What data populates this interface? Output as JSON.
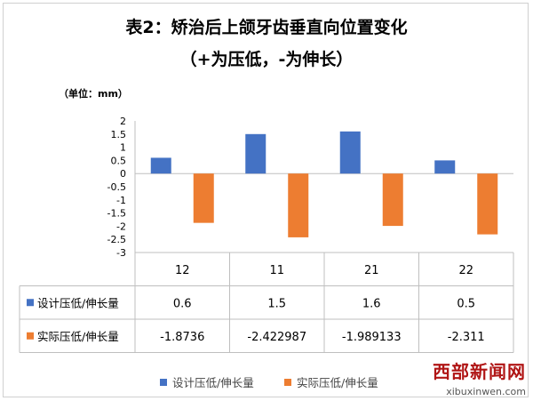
{
  "chart_data": {
    "type": "bar",
    "title": "表2：矫治后上颌牙齿垂直向位置变化",
    "subtitle": "（+为压低，-为伸长）",
    "unit_label": "（单位：mm）",
    "categories": [
      "12",
      "11",
      "21",
      "22"
    ],
    "series": [
      {
        "name": "设计压低/伸长量",
        "values": [
          0.6,
          1.5,
          1.6,
          0.5
        ],
        "labels": [
          "0.6",
          "1.5",
          "1.6",
          "0.5"
        ],
        "color": "#4472C4"
      },
      {
        "name": "实际压低/伸长量",
        "values": [
          -1.8736,
          -2.422987,
          -1.989133,
          -2.311
        ],
        "labels": [
          "-1.8736",
          "-2.422987",
          "-1.989133",
          "-2.311"
        ],
        "color": "#ED7D31"
      }
    ],
    "yticks": [
      "2",
      "1.5",
      "1",
      "0.5",
      "0",
      "-0.5",
      "-1",
      "-1.5",
      "-2",
      "-2.5",
      "-3"
    ],
    "ylim": [
      -3,
      2
    ],
    "grid": false,
    "legend": "bottom",
    "data_table": true
  },
  "watermark": {
    "cn": "西部新闻网",
    "url": "xibuxinwen.com"
  }
}
